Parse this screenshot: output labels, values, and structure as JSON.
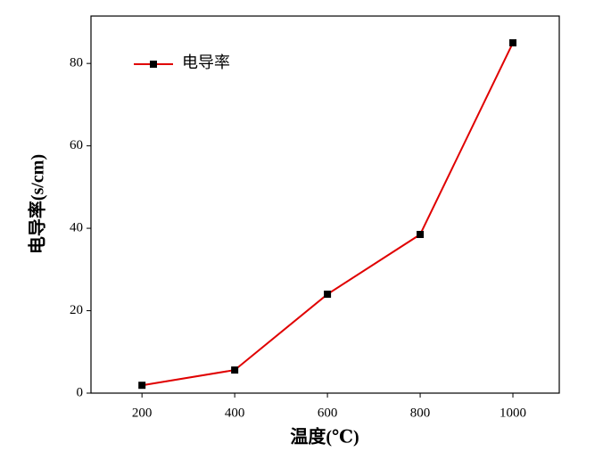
{
  "chart_data": {
    "type": "line",
    "x_label": "温度(℃)",
    "y_label": "电导率(s/cm)",
    "x": [
      200,
      400,
      600,
      800,
      1000
    ],
    "series": [
      {
        "name": "电导率",
        "color": "#e00000",
        "marker_color": "#000000",
        "values": [
          1.9,
          5.6,
          24,
          38.5,
          85
        ]
      }
    ],
    "xlim": [
      90,
      1100
    ],
    "xticks": [
      200,
      400,
      600,
      800,
      1000
    ],
    "ylim": [
      0,
      91.5
    ],
    "yticks": [
      0,
      20,
      40,
      60,
      80
    ],
    "grid": false,
    "legend": "upper left"
  }
}
